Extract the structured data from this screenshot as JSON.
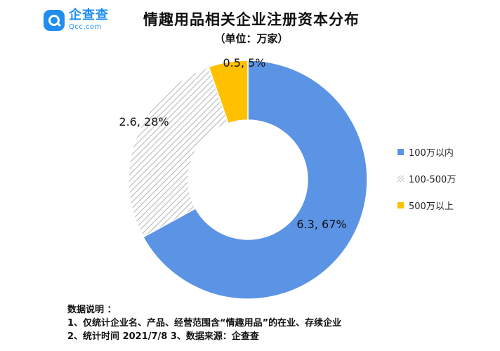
{
  "header": {
    "logo_name": "企查查",
    "logo_domain": "Qcc.com",
    "title": "情趣用品相关企业注册资本分布",
    "subtitle": "（单位：万家）"
  },
  "chart_data": {
    "type": "pie",
    "style": "donut",
    "title": "情趣用品相关企业注册资本分布",
    "unit": "万家",
    "categories": [
      "100万以内",
      "100-500万",
      "500万以上"
    ],
    "values": [
      6.3,
      2.6,
      0.5
    ],
    "percent_labels": [
      "6.3, 67%",
      "2.6, 28%",
      "0.5, 5%"
    ],
    "colors": [
      "#5b93e5",
      "hatch-gray",
      "#ffc000"
    ],
    "legend_position": "right"
  },
  "legend": [
    {
      "label": "100万以内",
      "icon": "solid-square",
      "color": "#5b93e5"
    },
    {
      "label": "100-500万",
      "icon": "hatched-square",
      "color": "#b8bcc0"
    },
    {
      "label": "500万以上",
      "icon": "solid-square",
      "color": "#ffc000"
    }
  ],
  "notes": {
    "heading": "数据说明 ：",
    "line1": "1、仅统计企业名、产品、经营范围含“情趣用品”的在业、存续企业",
    "line2": "2、统计时间  2021/7/8      3、数据来源：企查查"
  }
}
